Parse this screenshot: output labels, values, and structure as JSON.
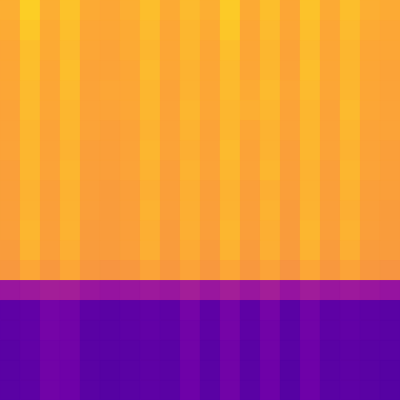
{
  "chart_data": {
    "type": "heatmap",
    "cells": [
      [
        0.82,
        0.9,
        0.82,
        0.87,
        0.81,
        0.8,
        0.82,
        0.86,
        0.81,
        0.85,
        0.82,
        0.89,
        0.81,
        0.86,
        0.8,
        0.87,
        0.81,
        0.86,
        0.82,
        0.81
      ],
      [
        0.81,
        0.88,
        0.81,
        0.86,
        0.8,
        0.8,
        0.81,
        0.85,
        0.8,
        0.84,
        0.81,
        0.88,
        0.8,
        0.85,
        0.8,
        0.86,
        0.8,
        0.85,
        0.81,
        0.8
      ],
      [
        0.8,
        0.86,
        0.81,
        0.85,
        0.8,
        0.79,
        0.81,
        0.84,
        0.8,
        0.84,
        0.8,
        0.86,
        0.8,
        0.84,
        0.79,
        0.85,
        0.8,
        0.84,
        0.8,
        0.8
      ],
      [
        0.8,
        0.86,
        0.8,
        0.86,
        0.79,
        0.79,
        0.8,
        0.85,
        0.8,
        0.83,
        0.8,
        0.85,
        0.8,
        0.84,
        0.79,
        0.86,
        0.8,
        0.84,
        0.8,
        0.79
      ],
      [
        0.8,
        0.85,
        0.8,
        0.85,
        0.79,
        0.8,
        0.8,
        0.84,
        0.79,
        0.83,
        0.8,
        0.85,
        0.81,
        0.85,
        0.8,
        0.85,
        0.8,
        0.84,
        0.8,
        0.79
      ],
      [
        0.79,
        0.85,
        0.8,
        0.84,
        0.79,
        0.79,
        0.8,
        0.84,
        0.79,
        0.84,
        0.8,
        0.84,
        0.82,
        0.84,
        0.79,
        0.84,
        0.79,
        0.85,
        0.8,
        0.79
      ],
      [
        0.79,
        0.84,
        0.79,
        0.84,
        0.79,
        0.78,
        0.79,
        0.83,
        0.79,
        0.83,
        0.79,
        0.84,
        0.8,
        0.83,
        0.79,
        0.84,
        0.79,
        0.84,
        0.79,
        0.79
      ],
      [
        0.79,
        0.84,
        0.79,
        0.83,
        0.78,
        0.78,
        0.79,
        0.84,
        0.79,
        0.82,
        0.79,
        0.85,
        0.79,
        0.83,
        0.78,
        0.84,
        0.79,
        0.83,
        0.79,
        0.78
      ],
      [
        0.78,
        0.84,
        0.79,
        0.84,
        0.78,
        0.78,
        0.79,
        0.83,
        0.78,
        0.83,
        0.79,
        0.84,
        0.79,
        0.84,
        0.78,
        0.83,
        0.78,
        0.84,
        0.79,
        0.78
      ],
      [
        0.78,
        0.83,
        0.78,
        0.83,
        0.78,
        0.77,
        0.78,
        0.82,
        0.78,
        0.82,
        0.78,
        0.83,
        0.78,
        0.82,
        0.78,
        0.83,
        0.78,
        0.83,
        0.78,
        0.78
      ],
      [
        0.78,
        0.83,
        0.78,
        0.83,
        0.78,
        0.77,
        0.78,
        0.83,
        0.78,
        0.82,
        0.78,
        0.83,
        0.78,
        0.83,
        0.77,
        0.83,
        0.78,
        0.82,
        0.78,
        0.77
      ],
      [
        0.78,
        0.84,
        0.78,
        0.83,
        0.77,
        0.77,
        0.78,
        0.82,
        0.77,
        0.82,
        0.78,
        0.84,
        0.78,
        0.82,
        0.77,
        0.84,
        0.78,
        0.83,
        0.78,
        0.77
      ],
      [
        0.77,
        0.83,
        0.78,
        0.82,
        0.77,
        0.77,
        0.78,
        0.82,
        0.77,
        0.81,
        0.77,
        0.83,
        0.77,
        0.82,
        0.77,
        0.83,
        0.77,
        0.82,
        0.77,
        0.77
      ],
      [
        0.76,
        0.8,
        0.76,
        0.8,
        0.76,
        0.75,
        0.76,
        0.79,
        0.76,
        0.79,
        0.76,
        0.8,
        0.76,
        0.79,
        0.75,
        0.8,
        0.76,
        0.79,
        0.76,
        0.75
      ],
      [
        0.33,
        0.34,
        0.36,
        0.36,
        0.33,
        0.32,
        0.33,
        0.34,
        0.33,
        0.36,
        0.33,
        0.36,
        0.33,
        0.36,
        0.32,
        0.35,
        0.33,
        0.34,
        0.33,
        0.32
      ],
      [
        0.17,
        0.18,
        0.23,
        0.22,
        0.17,
        0.16,
        0.17,
        0.18,
        0.17,
        0.23,
        0.17,
        0.23,
        0.17,
        0.23,
        0.16,
        0.22,
        0.17,
        0.18,
        0.17,
        0.16
      ],
      [
        0.17,
        0.18,
        0.23,
        0.22,
        0.16,
        0.16,
        0.17,
        0.18,
        0.17,
        0.22,
        0.17,
        0.23,
        0.17,
        0.22,
        0.16,
        0.22,
        0.17,
        0.18,
        0.17,
        0.16
      ],
      [
        0.16,
        0.18,
        0.22,
        0.22,
        0.16,
        0.16,
        0.16,
        0.17,
        0.16,
        0.22,
        0.16,
        0.22,
        0.16,
        0.22,
        0.16,
        0.21,
        0.16,
        0.17,
        0.16,
        0.16
      ],
      [
        0.16,
        0.17,
        0.22,
        0.21,
        0.16,
        0.15,
        0.16,
        0.17,
        0.16,
        0.21,
        0.16,
        0.22,
        0.16,
        0.21,
        0.15,
        0.21,
        0.16,
        0.17,
        0.16,
        0.15
      ],
      [
        0.16,
        0.17,
        0.22,
        0.21,
        0.16,
        0.15,
        0.16,
        0.17,
        0.16,
        0.21,
        0.16,
        0.22,
        0.16,
        0.21,
        0.15,
        0.21,
        0.16,
        0.17,
        0.16,
        0.15
      ]
    ],
    "vlim": [
      0,
      1
    ],
    "tick_labels": false,
    "grid": false
  }
}
